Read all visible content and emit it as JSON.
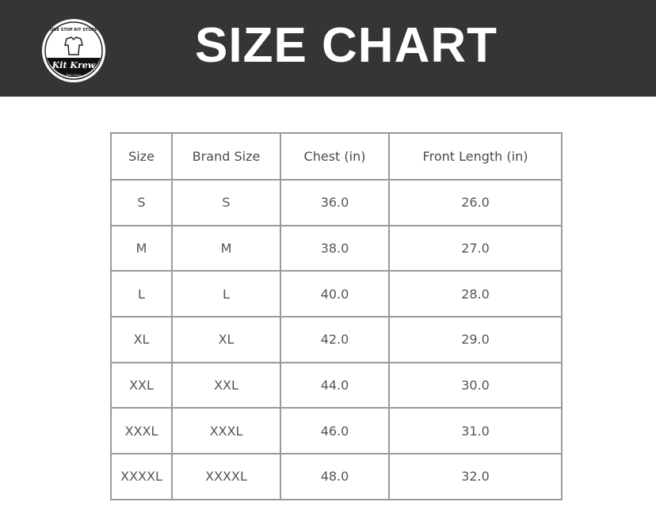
{
  "header": {
    "title": "SIZE CHART",
    "logo": {
      "text": "Kit Krew",
      "arc_text": "ONE STOP KIT STORE",
      "est": "Est.2022"
    }
  },
  "table": {
    "columns": [
      "Size",
      "Brand Size",
      "Chest (in)",
      "Front Length (in)"
    ],
    "rows": [
      [
        "S",
        "S",
        "36.0",
        "26.0"
      ],
      [
        "M",
        "M",
        "38.0",
        "27.0"
      ],
      [
        "L",
        "L",
        "40.0",
        "28.0"
      ],
      [
        "XL",
        "XL",
        "42.0",
        "29.0"
      ],
      [
        "XXL",
        "XXL",
        "44.0",
        "30.0"
      ],
      [
        "XXXL",
        "XXXL",
        "46.0",
        "31.0"
      ],
      [
        "XXXXL",
        "XXXXL",
        "48.0",
        "32.0"
      ]
    ]
  }
}
